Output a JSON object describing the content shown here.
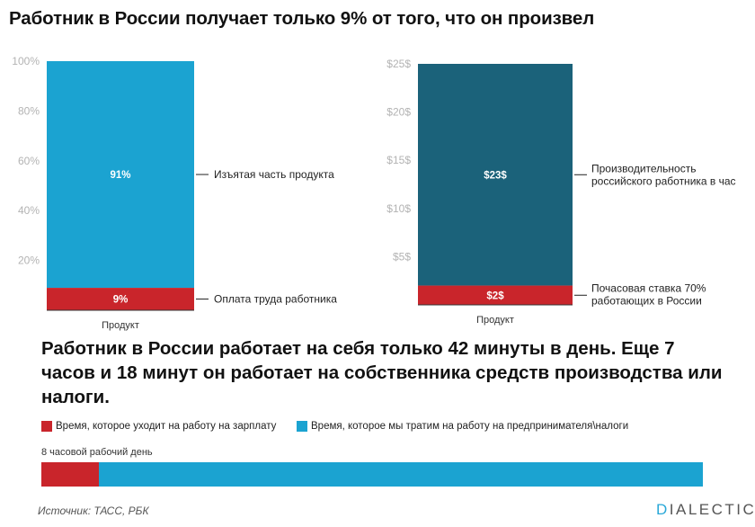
{
  "title": "Работник в России получает только 9% от того, что он произвел",
  "colors": {
    "red": "#c9252b",
    "blue": "#1ba3d1",
    "dark_teal": "#1b627a"
  },
  "chart_data": [
    {
      "type": "bar",
      "stacked": true,
      "categories": [
        "Продукт"
      ],
      "series": [
        {
          "name": "Оплата труда работника",
          "values": [
            9
          ],
          "label": "9%",
          "color": "#c9252b"
        },
        {
          "name": "Изъятая часть продукта",
          "values": [
            91
          ],
          "label": "91%",
          "color": "#1ba3d1"
        }
      ],
      "ylim": [
        0,
        100
      ],
      "yticks": [
        20,
        40,
        60,
        80,
        100
      ],
      "ytick_labels": [
        "20%",
        "40%",
        "60%",
        "80%",
        "100%"
      ]
    },
    {
      "type": "bar",
      "stacked": true,
      "categories": [
        "Продукт"
      ],
      "series": [
        {
          "name": "Почасовая ставка 70% работающих в России",
          "values": [
            2
          ],
          "label": "$2$",
          "color": "#c9252b"
        },
        {
          "name": "Производительность российского работника в час",
          "values": [
            23
          ],
          "label": "$23$",
          "color": "#1b627a"
        }
      ],
      "ylim": [
        0,
        25
      ],
      "yticks": [
        5,
        10,
        15,
        20,
        25
      ],
      "ytick_labels": [
        "$5$",
        "$10$",
        "$15$",
        "$20$",
        "$25$"
      ]
    },
    {
      "type": "bar",
      "orientation": "horizontal",
      "categories": [
        "8 часовой рабочий день"
      ],
      "series": [
        {
          "name": "Время, которое уходит на работу на зарплату",
          "values": [
            42
          ],
          "unit": "minutes",
          "color": "#c9252b"
        },
        {
          "name": "Время, которое мы тратим на работу на предпринимателя\\налоги",
          "values": [
            438
          ],
          "unit": "minutes",
          "color": "#1ba3d1"
        }
      ],
      "xlim": [
        0,
        480
      ]
    }
  ],
  "labels": {
    "left_ann_top": "Изъятая часть продукта",
    "left_ann_bottom": "Оплата труда работника",
    "right_ann_top": [
      "Производительность",
      "российского работника в час"
    ],
    "right_ann_bottom": [
      "Почасовая ставка 70%",
      "работающих в России"
    ],
    "category": "Продукт"
  },
  "subtitle": "Работник в России работает на себя только 42 минуты в день. Еще 7 часов и 18 минут он работает на собственника средств производства или налоги.",
  "legend": {
    "red_label": "Время, которое уходит на работу на зарплату",
    "blue_label": "Время, которое мы тратим на работу на предпринимателя\\налоги"
  },
  "bar_label": "8 часовой рабочий день",
  "source": "Источник: ТАСС, РБК",
  "logo": {
    "accent": "D",
    "rest": "IALECTIC"
  }
}
